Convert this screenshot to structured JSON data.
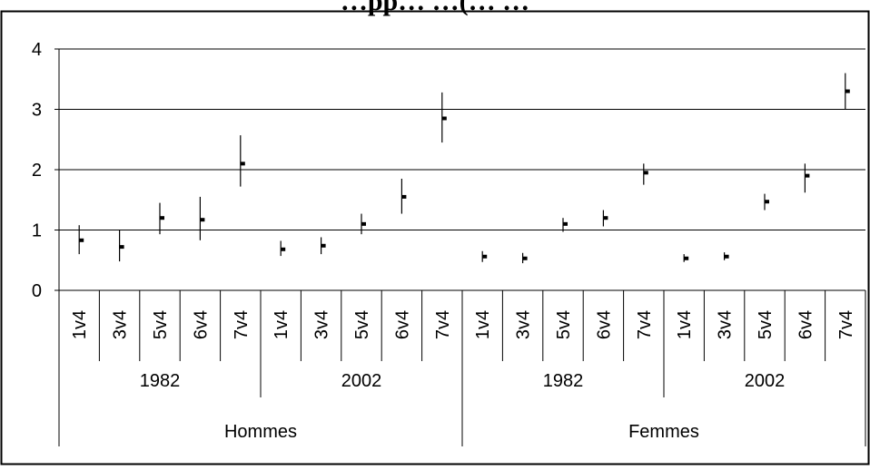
{
  "chart_data": {
    "type": "scatter",
    "title": "",
    "title_partial": "…pp… …(… …",
    "xlabel": "",
    "ylabel": "",
    "ylim": [
      0,
      4
    ],
    "y_ticks": [
      "0",
      "1",
      "2",
      "3",
      "4"
    ],
    "grid": true,
    "legend": "none",
    "error_bars": true,
    "groups": [
      "Hommes",
      "Femmes"
    ],
    "years": [
      "1982",
      "2002"
    ],
    "categories": [
      "1v4",
      "3v4",
      "5v4",
      "6v4",
      "7v4"
    ],
    "series": [
      {
        "group": "Hommes",
        "year": "1982",
        "points": [
          {
            "x": "1v4",
            "y": 0.83,
            "low": 0.6,
            "high": 1.08
          },
          {
            "x": "3v4",
            "y": 0.72,
            "low": 0.48,
            "high": 1.0
          },
          {
            "x": "5v4",
            "y": 1.2,
            "low": 0.93,
            "high": 1.45
          },
          {
            "x": "6v4",
            "y": 1.17,
            "low": 0.83,
            "high": 1.55
          },
          {
            "x": "7v4",
            "y": 2.1,
            "low": 1.72,
            "high": 2.57
          }
        ]
      },
      {
        "group": "Hommes",
        "year": "2002",
        "points": [
          {
            "x": "1v4",
            "y": 0.68,
            "low": 0.57,
            "high": 0.82
          },
          {
            "x": "3v4",
            "y": 0.74,
            "low": 0.6,
            "high": 0.88
          },
          {
            "x": "5v4",
            "y": 1.1,
            "low": 0.93,
            "high": 1.27
          },
          {
            "x": "6v4",
            "y": 1.55,
            "low": 1.27,
            "high": 1.85
          },
          {
            "x": "7v4",
            "y": 2.85,
            "low": 2.45,
            "high": 3.28
          }
        ]
      },
      {
        "group": "Femmes",
        "year": "1982",
        "points": [
          {
            "x": "1v4",
            "y": 0.56,
            "low": 0.47,
            "high": 0.65
          },
          {
            "x": "3v4",
            "y": 0.53,
            "low": 0.45,
            "high": 0.62
          },
          {
            "x": "5v4",
            "y": 1.1,
            "low": 0.97,
            "high": 1.2
          },
          {
            "x": "6v4",
            "y": 1.2,
            "low": 1.06,
            "high": 1.33
          },
          {
            "x": "7v4",
            "y": 1.95,
            "low": 1.75,
            "high": 2.1
          }
        ]
      },
      {
        "group": "Femmes",
        "year": "2002",
        "points": [
          {
            "x": "1v4",
            "y": 0.53,
            "low": 0.47,
            "high": 0.6
          },
          {
            "x": "3v4",
            "y": 0.56,
            "low": 0.5,
            "high": 0.63
          },
          {
            "x": "5v4",
            "y": 1.47,
            "low": 1.33,
            "high": 1.6
          },
          {
            "x": "6v4",
            "y": 1.9,
            "low": 1.62,
            "high": 2.1
          },
          {
            "x": "7v4",
            "y": 3.3,
            "low": 3.0,
            "high": 3.6
          }
        ]
      }
    ],
    "colors": {
      "marker": "#000000",
      "grid": "#000000",
      "background": "#ffffff",
      "border": "#000000"
    }
  }
}
